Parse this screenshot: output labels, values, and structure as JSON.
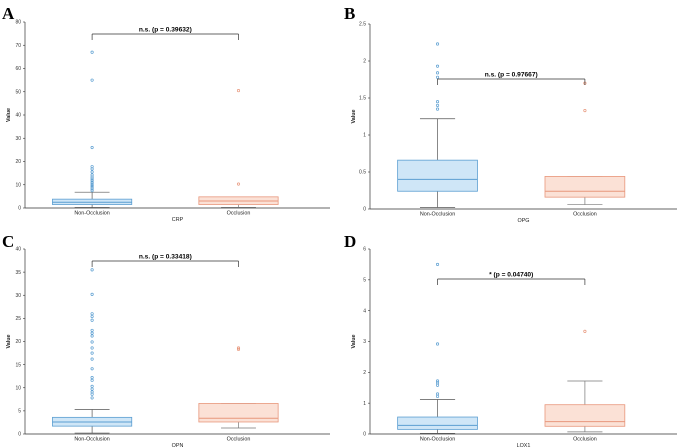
{
  "chart_data": [
    {
      "type": "box",
      "panel": "A",
      "xlabel": "CRP",
      "ylabel": "Value",
      "ylim": [
        0,
        80
      ],
      "yticks": [
        "0",
        "10",
        "20",
        "30",
        "40",
        "50",
        "60",
        "70",
        "80"
      ],
      "categories": [
        "Non-Occlusion",
        "Occlusion"
      ],
      "colors": {
        "box_fill": [
          "#cfe6f7",
          "#fbe1d6"
        ],
        "box_edge": [
          "#5b9ed1",
          "#e8977c"
        ]
      },
      "boxes": [
        {
          "min": 0.2,
          "q1": 1.5,
          "median": 2.5,
          "q3": 3.8,
          "max": 6.8,
          "outliers": [
            7.5,
            8.2,
            9.0,
            9.6,
            10.3,
            11.0,
            11.8,
            12.5,
            13.3,
            14.2,
            15.5,
            16.8,
            17.8,
            26.0,
            55.0,
            67.0
          ]
        },
        {
          "min": 0.3,
          "q1": 1.5,
          "median": 3.0,
          "q3": 4.8,
          "max": 4.8,
          "outliers": [
            10.3,
            50.5
          ]
        }
      ],
      "significance": "n.s. (p = 0.39632)"
    },
    {
      "type": "box",
      "panel": "B",
      "xlabel": "OPG",
      "ylabel": "Value",
      "ylim": [
        0,
        2.5
      ],
      "yticks": [
        "0",
        "0.5",
        "1",
        "1.5",
        "2",
        "2.5"
      ],
      "categories": [
        "Non-Occlusion",
        "Occlusion"
      ],
      "colors": {
        "box_fill": [
          "#cfe6f7",
          "#fbe1d6"
        ],
        "box_edge": [
          "#5b9ed1",
          "#e8977c"
        ]
      },
      "boxes": [
        {
          "min": 0.02,
          "q1": 0.24,
          "median": 0.4,
          "q3": 0.66,
          "max": 1.22,
          "outliers": [
            1.35,
            1.4,
            1.45,
            1.78,
            1.84,
            1.93,
            2.23
          ]
        },
        {
          "min": 0.06,
          "q1": 0.16,
          "median": 0.24,
          "q3": 0.44,
          "max": 0.44,
          "outliers": [
            1.33,
            1.7
          ]
        }
      ],
      "significance": "n.s. (p = 0.97667)"
    },
    {
      "type": "box",
      "panel": "C",
      "xlabel": "OPN",
      "ylabel": "Value",
      "ylim": [
        0,
        40
      ],
      "yticks": [
        "0",
        "5",
        "10",
        "15",
        "20",
        "25",
        "30",
        "35",
        "40"
      ],
      "categories": [
        "Non-Occlusion",
        "Occlusion"
      ],
      "colors": {
        "box_fill": [
          "#cfe6f7",
          "#fbe1d6"
        ],
        "box_edge": [
          "#5b9ed1",
          "#e8977c"
        ]
      },
      "boxes": [
        {
          "min": 0.2,
          "q1": 1.7,
          "median": 2.6,
          "q3": 3.6,
          "max": 5.3,
          "outliers": [
            7.8,
            8.6,
            9.1,
            9.7,
            10.3,
            11.6,
            12.2,
            14.1,
            16.2,
            17.5,
            18.6,
            19.9,
            21.2,
            21.8,
            22.4,
            24.6,
            25.4,
            26.0,
            30.2,
            35.5
          ]
        },
        {
          "min": 1.3,
          "q1": 2.6,
          "median": 3.4,
          "q3": 6.6,
          "max": 6.6,
          "outliers": [
            18.3,
            18.6
          ]
        }
      ],
      "significance": "n.s. (p = 0.33418)"
    },
    {
      "type": "box",
      "panel": "D",
      "xlabel": "LOX1",
      "ylabel": "Value",
      "ylim": [
        0,
        6
      ],
      "yticks": [
        "0",
        "1",
        "2",
        "3",
        "4",
        "5",
        "6"
      ],
      "categories": [
        "Non-Occlusion",
        "Occlusion"
      ],
      "colors": {
        "box_fill": [
          "#cfe6f7",
          "#fbe1d6"
        ],
        "box_edge": [
          "#5b9ed1",
          "#e8977c"
        ]
      },
      "boxes": [
        {
          "min": 0.02,
          "q1": 0.15,
          "median": 0.28,
          "q3": 0.55,
          "max": 1.12,
          "outliers": [
            1.22,
            1.3,
            1.58,
            1.66,
            1.72,
            2.92,
            5.5
          ]
        },
        {
          "min": 0.07,
          "q1": 0.25,
          "median": 0.4,
          "q3": 0.95,
          "max": 1.72,
          "outliers": [
            3.33
          ]
        }
      ],
      "significance": "* (p = 0.04740)"
    }
  ]
}
